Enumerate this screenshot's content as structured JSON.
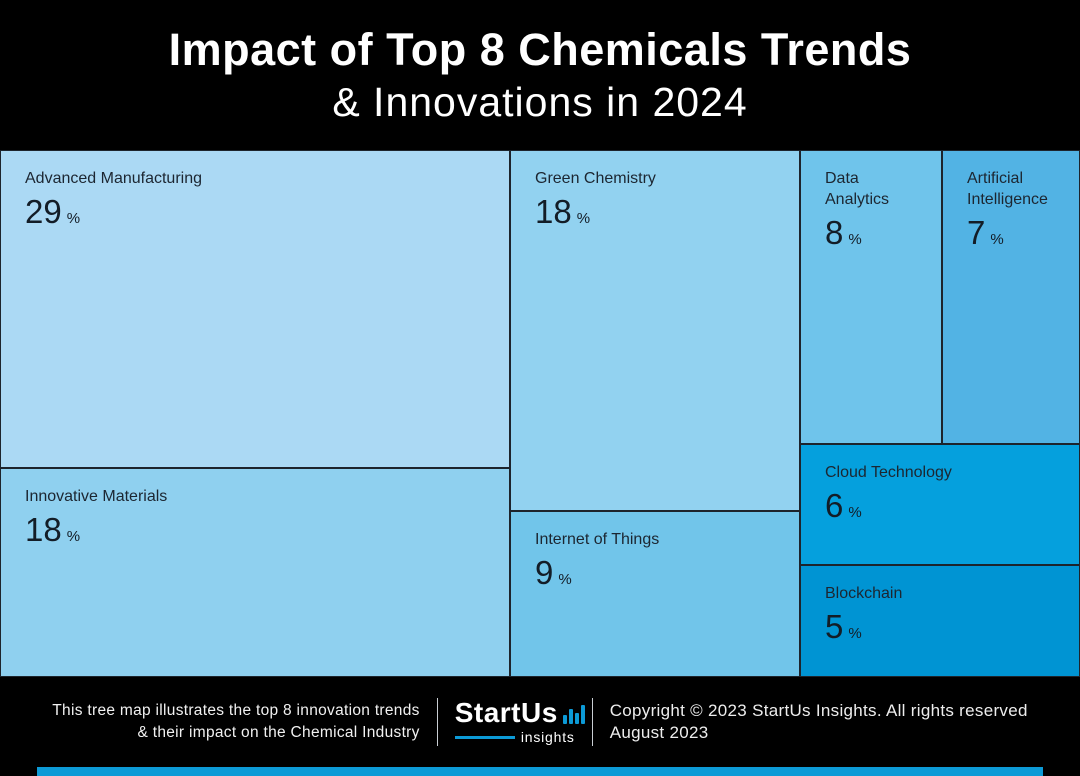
{
  "header": {
    "title_line1": "Impact of Top 8 Chemicals Trends",
    "title_line2": "& Innovations in 2024"
  },
  "chart_data": {
    "type": "treemap",
    "title": "Impact of Top 8 Chemicals Trends & Innovations in 2024",
    "unit": "%",
    "value_scale": "percent share of innovation impact",
    "items": [
      {
        "label": "Advanced Manufacturing",
        "value": 29,
        "color": "#ABD9F4"
      },
      {
        "label": "Innovative Materials",
        "value": 18,
        "color": "#8FD0EF"
      },
      {
        "label": "Green Chemistry",
        "value": 18,
        "color": "#92D2F0"
      },
      {
        "label": "Internet of Things",
        "value": 9,
        "color": "#71C5EA"
      },
      {
        "label": "Data Analytics",
        "value": 8,
        "color": "#6FC4EB"
      },
      {
        "label": "Artificial Intelligence",
        "value": 7,
        "color": "#52B3E4"
      },
      {
        "label": "Cloud Technology",
        "value": 6,
        "color": "#05A0DD"
      },
      {
        "label": "Blockchain",
        "value": 5,
        "color": "#0094D3"
      }
    ]
  },
  "footer": {
    "caption_line1": "This tree map illustrates the top 8 innovation trends",
    "caption_line2": "& their impact on the Chemical Industry",
    "logo": {
      "brand": "StartUs",
      "sub": "insights",
      "icon": "bar-chart-icon"
    },
    "copyright_line1": "Copyright © 2023 StartUs Insights. All rights reserved",
    "copyright_line2": "August 2023",
    "accent_color": "#0C9AD6"
  }
}
